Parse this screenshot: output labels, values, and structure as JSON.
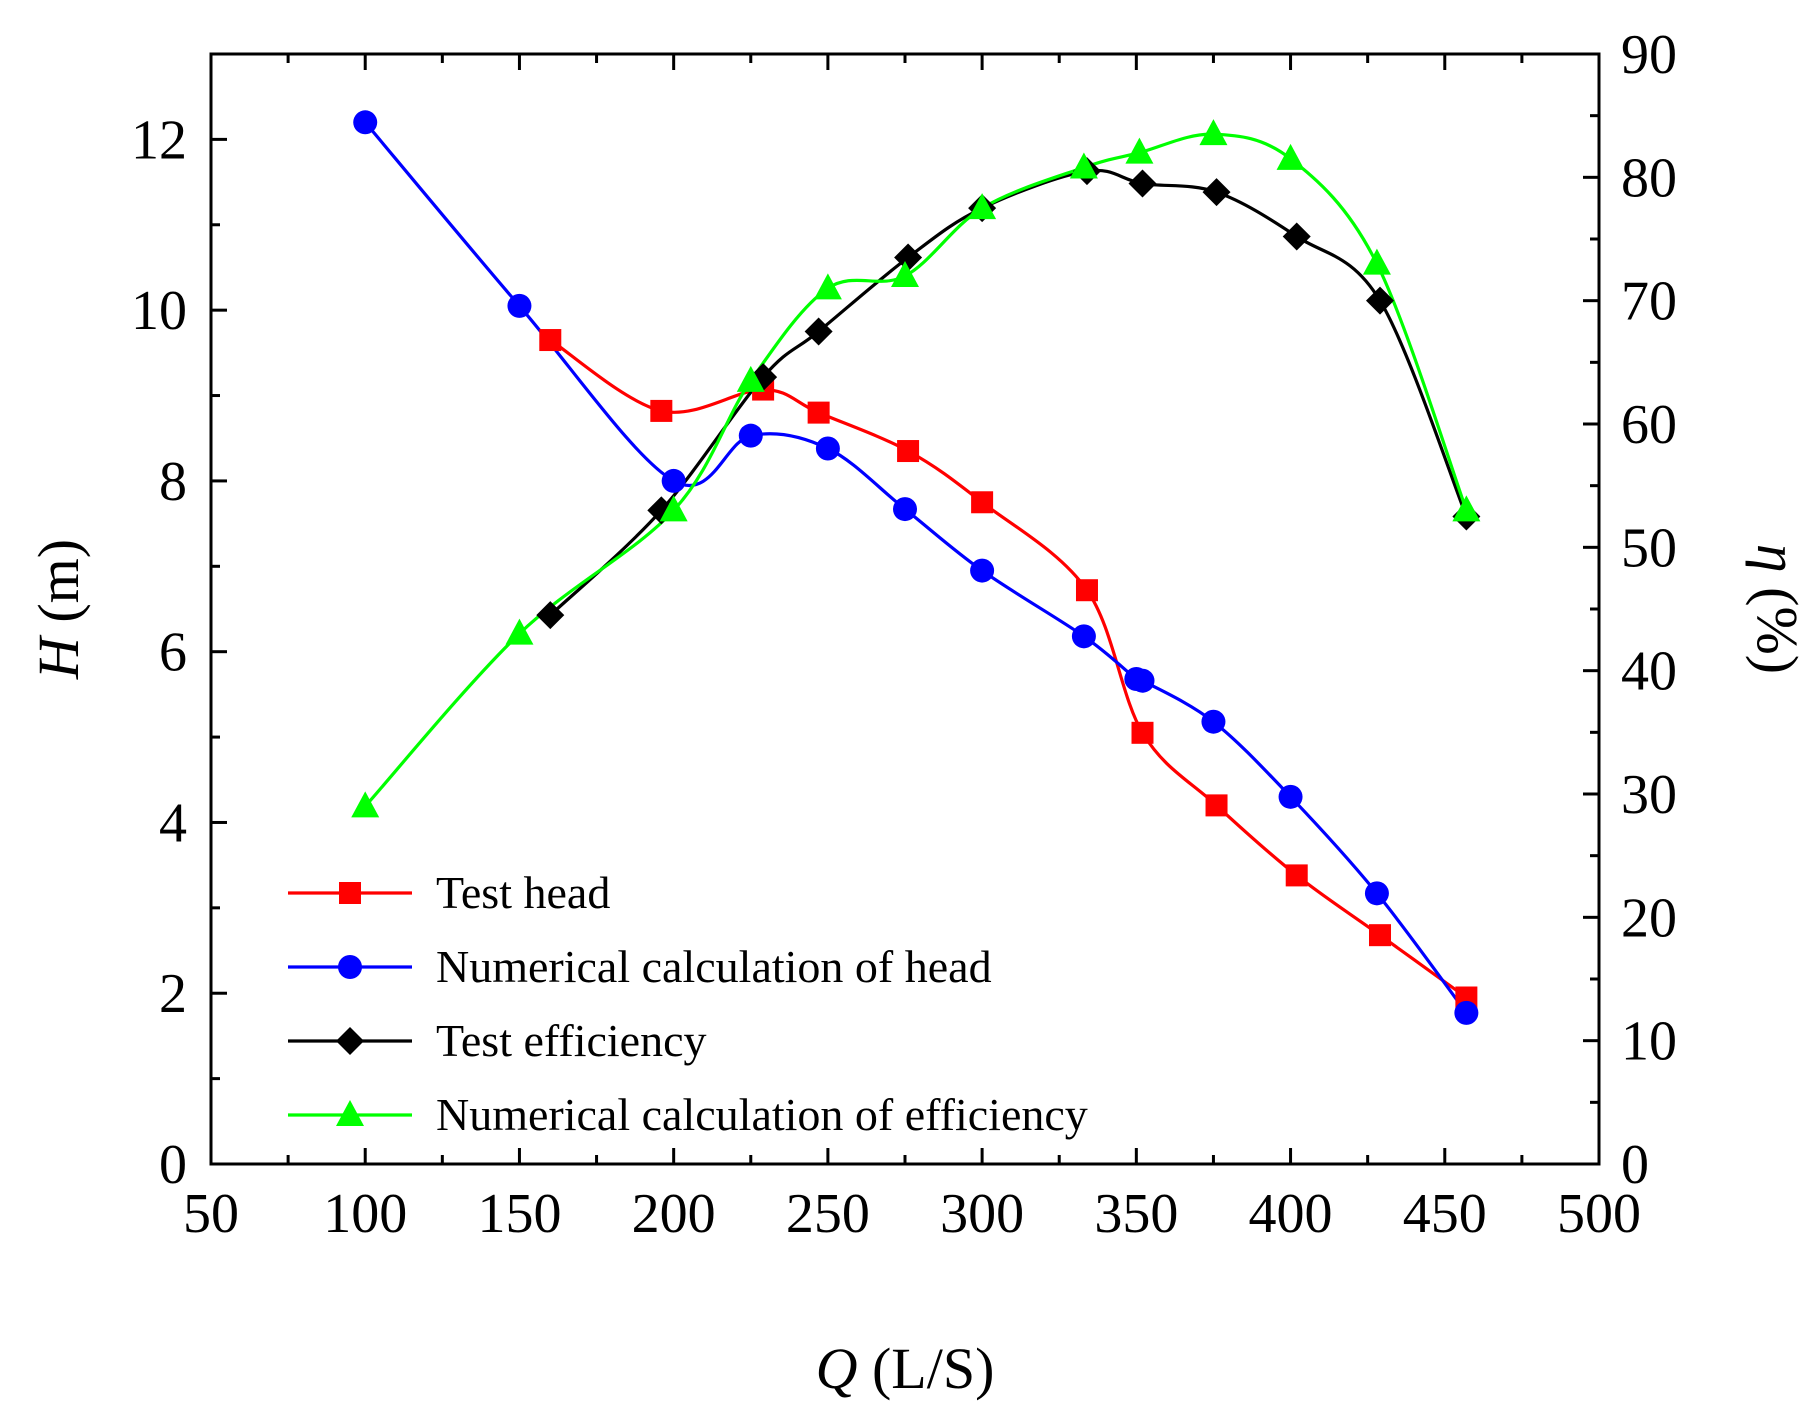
{
  "chart_data": {
    "type": "line",
    "title": "",
    "xlabel": {
      "symbol": "Q",
      "unit": "(L/S)"
    },
    "ylabel_left": {
      "symbol": "H",
      "unit": "(m)"
    },
    "ylabel_right": {
      "symbol": "η",
      "unit": "(%)"
    },
    "xlim": [
      50,
      500
    ],
    "ylim_left": [
      0,
      13
    ],
    "ylim_right": [
      0,
      90
    ],
    "x_ticks": [
      50,
      100,
      150,
      200,
      250,
      300,
      350,
      400,
      450,
      500
    ],
    "y_ticks_left": [
      0,
      2,
      4,
      6,
      8,
      10,
      12
    ],
    "y_ticks_right": [
      0,
      10,
      20,
      30,
      40,
      50,
      60,
      70,
      80,
      90
    ],
    "grid": false,
    "legend_position": "bottom-left",
    "series": [
      {
        "name": "Test head",
        "axis": "left",
        "color": "#ff0000",
        "marker": "square",
        "x": [
          160,
          196,
          229,
          247,
          276,
          300,
          334,
          352,
          376,
          402,
          429,
          457
        ],
        "y": [
          9.65,
          8.82,
          9.07,
          8.8,
          8.35,
          7.75,
          6.72,
          5.05,
          4.2,
          3.38,
          2.68,
          1.95
        ]
      },
      {
        "name": "Numerical calculation of head",
        "axis": "left",
        "color": "#0000ff",
        "marker": "circle",
        "x": [
          100,
          150,
          200,
          225,
          250,
          275,
          300,
          333,
          350,
          352,
          375,
          400,
          428,
          457
        ],
        "y": [
          12.2,
          10.05,
          8.0,
          8.53,
          8.38,
          7.67,
          6.95,
          6.18,
          5.68,
          5.66,
          5.18,
          4.3,
          3.17,
          1.77
        ]
      },
      {
        "name": "Test efficiency",
        "axis": "right",
        "color": "#000000",
        "marker": "diamond",
        "x": [
          160,
          196,
          229,
          247,
          276,
          300,
          334,
          352,
          376,
          402,
          429,
          457
        ],
        "y": [
          44.5,
          53.0,
          63.8,
          67.5,
          73.5,
          77.5,
          80.5,
          79.5,
          78.8,
          75.2,
          70.0,
          52.5
        ]
      },
      {
        "name": "Numerical calculation of efficiency",
        "axis": "right",
        "color": "#00ff00",
        "marker": "triangle",
        "x": [
          100,
          150,
          200,
          225,
          250,
          275,
          300,
          333,
          351,
          375,
          400,
          428,
          457
        ],
        "y": [
          29.0,
          43.0,
          53.0,
          63.5,
          71.0,
          72.0,
          77.5,
          80.8,
          82.0,
          83.5,
          81.5,
          73.0,
          53.0
        ]
      }
    ]
  }
}
